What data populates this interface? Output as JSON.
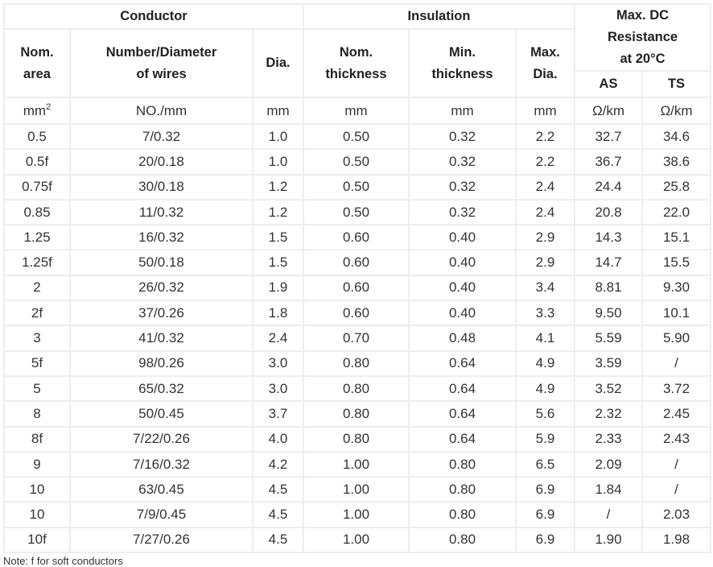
{
  "headers": {
    "conductor": "Conductor",
    "insulation": "Insulation",
    "resistance": [
      "Max. DC",
      "Resistance",
      "at 20°C"
    ],
    "nom_area": [
      "Nom.",
      "area"
    ],
    "num_dia": [
      "Number/Diameter",
      "of wires"
    ],
    "dia": "Dia.",
    "nom_thick": [
      "Nom.",
      "thickness"
    ],
    "min_thick": [
      "Min.",
      "thickness"
    ],
    "max_dia": [
      "Max.",
      "Dia."
    ],
    "as": "AS",
    "ts": "TS"
  },
  "units": {
    "area": "mm",
    "area_sup": "2",
    "num": "NO./mm",
    "dia": "mm",
    "nom": "mm",
    "min": "mm",
    "max": "mm",
    "as": "Ω/km",
    "ts": "Ω/km"
  },
  "rows": [
    [
      "0.5",
      "7/0.32",
      "1.0",
      "0.50",
      "0.32",
      "2.2",
      "32.7",
      "34.6"
    ],
    [
      "0.5f",
      "20/0.18",
      "1.0",
      "0.50",
      "0.32",
      "2.2",
      "36.7",
      "38.6"
    ],
    [
      "0.75f",
      "30/0.18",
      "1.2",
      "0.50",
      "0.32",
      "2.4",
      "24.4",
      "25.8"
    ],
    [
      "0.85",
      "11/0.32",
      "1.2",
      "0.50",
      "0.32",
      "2.4",
      "20.8",
      "22.0"
    ],
    [
      "1.25",
      "16/0.32",
      "1.5",
      "0.60",
      "0.40",
      "2.9",
      "14.3",
      "15.1"
    ],
    [
      "1.25f",
      "50/0.18",
      "1.5",
      "0.60",
      "0.40",
      "2.9",
      "14.7",
      "15.5"
    ],
    [
      "2",
      "26/0.32",
      "1.9",
      "0.60",
      "0.40",
      "3.4",
      "8.81",
      "9.30"
    ],
    [
      "2f",
      "37/0.26",
      "1.8",
      "0.60",
      "0.40",
      "3.3",
      "9.50",
      "10.1"
    ],
    [
      "3",
      "41/0.32",
      "2.4",
      "0.70",
      "0.48",
      "4.1",
      "5.59",
      "5.90"
    ],
    [
      "5f",
      "98/0.26",
      "3.0",
      "0.80",
      "0.64",
      "4.9",
      "3.59",
      "/"
    ],
    [
      "5",
      "65/0.32",
      "3.0",
      "0.80",
      "0.64",
      "4.9",
      "3.52",
      "3.72"
    ],
    [
      "8",
      "50/0.45",
      "3.7",
      "0.80",
      "0.64",
      "5.6",
      "2.32",
      "2.45"
    ],
    [
      "8f",
      "7/22/0.26",
      "4.0",
      "0.80",
      "0.64",
      "5.9",
      "2.33",
      "2.43"
    ],
    [
      "9",
      "7/16/0.32",
      "4.2",
      "1.00",
      "0.80",
      "6.5",
      "2.09",
      "/"
    ],
    [
      "10",
      "63/0.45",
      "4.5",
      "1.00",
      "0.80",
      "6.9",
      "1.84",
      "/"
    ],
    [
      "10",
      "7/9/0.45",
      "4.5",
      "1.00",
      "0.80",
      "6.9",
      "/",
      "2.03"
    ],
    [
      "10f",
      "7/27/0.26",
      "4.5",
      "1.00",
      "0.80",
      "6.9",
      "1.90",
      "1.98"
    ]
  ],
  "note": "Note: f for soft conductors"
}
